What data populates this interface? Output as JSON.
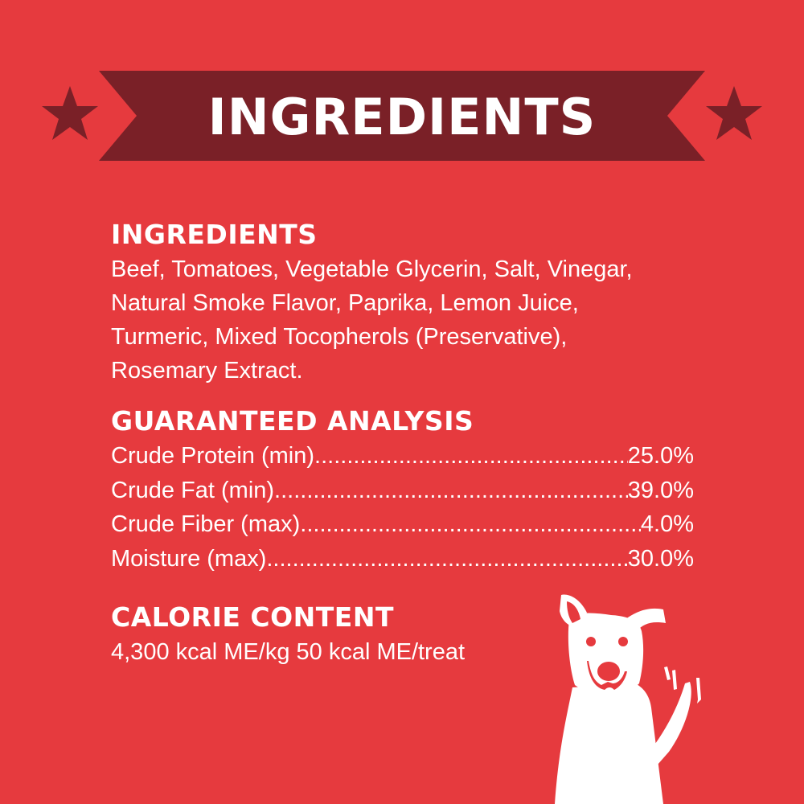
{
  "banner": {
    "title": "INGREDIENTS",
    "colors": {
      "background": "#e63a3e",
      "ribbon": "#7a2027",
      "text": "#ffffff"
    },
    "icons": [
      "star-icon",
      "star-icon"
    ]
  },
  "ingredients": {
    "heading": "INGREDIENTS",
    "lines": [
      "Beef, Tomatoes, Vegetable Glycerin, Salt, Vinegar,",
      "Natural Smoke Flavor, Paprika, Lemon Juice,",
      "Turmeric, Mixed Tocopherols (Preservative),",
      "Rosemary Extract."
    ]
  },
  "analysis": {
    "heading": "GUARANTEED ANALYSIS",
    "rows": [
      {
        "label": "Crude Protein (min)",
        "value": "25.0%"
      },
      {
        "label": "Crude Fat (min)",
        "value": "39.0%"
      },
      {
        "label": "Crude Fiber (max)",
        "value": "4.0%"
      },
      {
        "label": "Moisture (max)",
        "value": "30.0%"
      }
    ]
  },
  "calorie": {
    "heading": "CALORIE CONTENT",
    "text": "4,300 kcal ME/kg 50 kcal ME/treat"
  },
  "illustration": "dog-icon"
}
